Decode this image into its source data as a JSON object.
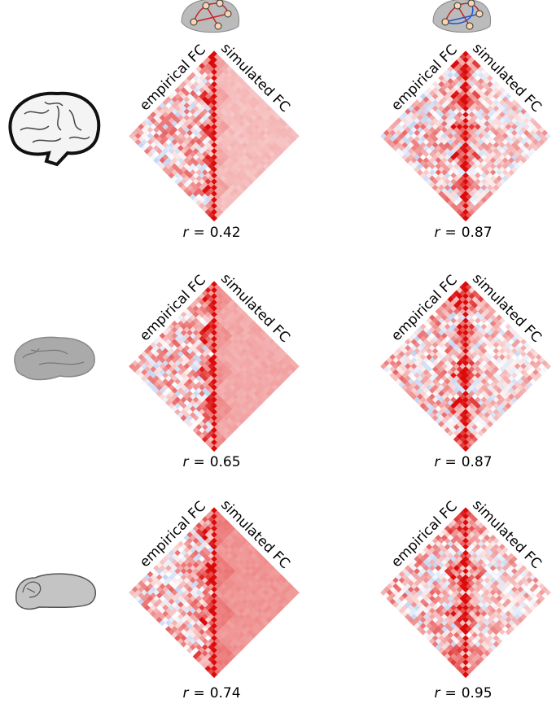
{
  "figure": {
    "rows": [
      {
        "panels": [
          {
            "left_label": "empirical FC",
            "right_label": "simulated FC",
            "stat": {
              "symbol": "r",
              "relation": "=",
              "value": 0.42
            }
          },
          {
            "left_label": "empirical FC",
            "right_label": "simulated FC",
            "stat": {
              "symbol": "r",
              "relation": "=",
              "value": 0.87
            }
          }
        ]
      },
      {
        "panels": [
          {
            "left_label": "empirical FC",
            "right_label": "simulated FC",
            "stat": {
              "symbol": "r",
              "relation": "=",
              "value": 0.65
            }
          },
          {
            "left_label": "empirical FC",
            "right_label": "simulated FC",
            "stat": {
              "symbol": "r",
              "relation": "=",
              "value": 0.87
            }
          }
        ]
      },
      {
        "panels": [
          {
            "left_label": "empirical FC",
            "right_label": "simulated FC",
            "stat": {
              "symbol": "r",
              "relation": "=",
              "value": 0.74
            }
          },
          {
            "left_label": "empirical FC",
            "right_label": "simulated FC",
            "stat": {
              "symbol": "r",
              "relation": "=",
              "value": 0.95
            }
          }
        ]
      }
    ]
  }
}
